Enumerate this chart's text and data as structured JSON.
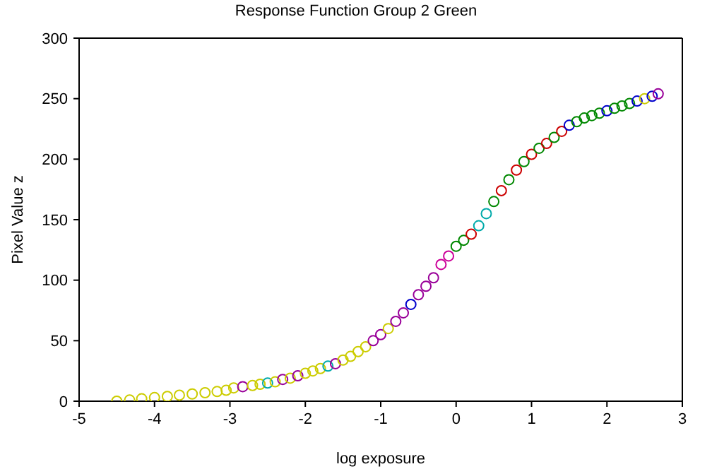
{
  "chart_data": {
    "type": "scatter",
    "title": "Response Function Group 2 Green",
    "xlabel": "log exposure",
    "ylabel": "Pixel Value z",
    "marker": "circle",
    "xlim": [
      -5,
      3
    ],
    "xticks": [
      -5,
      -4,
      -3,
      -2,
      -1,
      0,
      1,
      2,
      3
    ],
    "ylim": [
      0,
      300
    ],
    "yticks": [
      0,
      50,
      100,
      150,
      200,
      250,
      300
    ],
    "x": [
      -4.5,
      -4.33,
      -4.17,
      -4.0,
      -3.83,
      -3.67,
      -3.5,
      -3.33,
      -3.17,
      -3.05,
      -2.95,
      -2.83,
      -2.7,
      -2.6,
      -2.5,
      -2.4,
      -2.3,
      -2.2,
      -2.1,
      -2.0,
      -1.9,
      -1.8,
      -1.7,
      -1.6,
      -1.5,
      -1.4,
      -1.3,
      -1.2,
      -1.1,
      -1.0,
      -0.9,
      -0.8,
      -0.7,
      -0.6,
      -0.5,
      -0.4,
      -0.3,
      -0.2,
      -0.1,
      0,
      0.1,
      0.2,
      0.3,
      0.4,
      0.5,
      0.6,
      0.7,
      0.8,
      0.9,
      1.0,
      1.1,
      1.2,
      1.3,
      1.4,
      1.5,
      1.6,
      1.7,
      1.8,
      1.9,
      2.0,
      2.1,
      2.2,
      2.3,
      2.4,
      2.5,
      2.6,
      2.68
    ],
    "values": [
      0,
      1,
      2,
      3,
      4,
      5,
      6,
      7,
      8,
      9,
      11,
      12,
      13,
      14,
      15,
      16,
      18,
      19,
      21,
      23,
      25,
      27,
      29,
      31,
      34,
      37,
      41,
      45,
      50,
      55,
      60,
      66,
      73,
      80,
      88,
      95,
      102,
      113,
      120,
      128,
      133,
      138,
      145,
      155,
      165,
      174,
      183,
      191,
      198,
      204,
      209,
      213,
      218,
      223,
      228,
      231,
      234,
      236,
      238,
      240,
      242,
      244,
      246,
      248,
      250,
      252,
      254
    ],
    "colors": [
      "#cccc00",
      "#cccc00",
      "#cccc00",
      "#cccc00",
      "#cccc00",
      "#cccc00",
      "#cccc00",
      "#cccc00",
      "#cccc00",
      "#cccc00",
      "#cccc00",
      "#990099",
      "#cccc00",
      "#cccc00",
      "#00aaaa",
      "#cccc00",
      "#990099",
      "#cccc00",
      "#990099",
      "#cccc00",
      "#cccc00",
      "#cccc00",
      "#00aaaa",
      "#990099",
      "#cccc00",
      "#cccc00",
      "#cccc00",
      "#cccc00",
      "#990099",
      "#990099",
      "#cccc00",
      "#990099",
      "#990099",
      "#0000cc",
      "#990099",
      "#990099",
      "#990099",
      "#cc0099",
      "#cc0099",
      "#008800",
      "#008800",
      "#cc0000",
      "#00aaaa",
      "#00aaaa",
      "#008800",
      "#cc0000",
      "#008800",
      "#cc0000",
      "#008800",
      "#cc0000",
      "#008800",
      "#cc0000",
      "#008800",
      "#cc0000",
      "#0000cc",
      "#008800",
      "#008800",
      "#008800",
      "#008800",
      "#0000cc",
      "#008800",
      "#008800",
      "#008800",
      "#0000cc",
      "#cccc00",
      "#0000cc",
      "#990099"
    ]
  }
}
